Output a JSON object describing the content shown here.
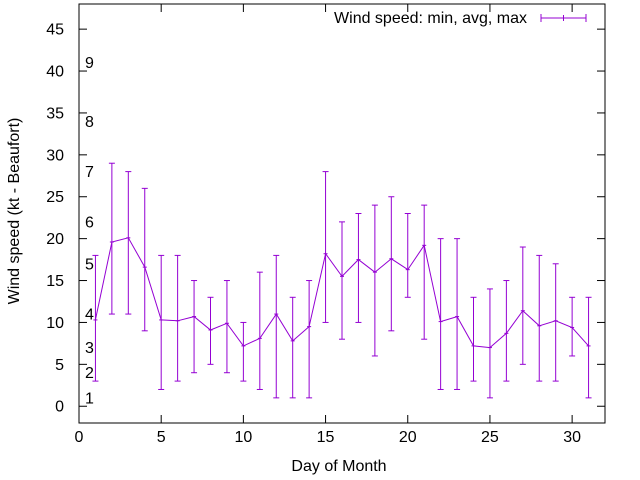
{
  "chart_data": {
    "type": "line",
    "title": "",
    "xlabel": "Day of Month",
    "ylabel": "Wind speed (kt - Beaufort)",
    "xlim": [
      0,
      32
    ],
    "ylim": [
      -2,
      48
    ],
    "xticks": [
      0,
      5,
      10,
      15,
      20,
      25,
      30
    ],
    "yticks": [
      0,
      5,
      10,
      15,
      20,
      25,
      30,
      35,
      40,
      45
    ],
    "legend": {
      "label": "Wind speed: min, avg, max",
      "position": "top-right"
    },
    "series_color": "#9400d3",
    "beaufort_labels": [
      {
        "label": "1",
        "y": 1
      },
      {
        "label": "2",
        "y": 4
      },
      {
        "label": "3",
        "y": 7
      },
      {
        "label": "4",
        "y": 11
      },
      {
        "label": "5",
        "y": 17
      },
      {
        "label": "6",
        "y": 22
      },
      {
        "label": "7",
        "y": 28
      },
      {
        "label": "8",
        "y": 34
      },
      {
        "label": "9",
        "y": 41
      }
    ],
    "series": [
      {
        "name": "Wind speed: min, avg, max",
        "points": [
          {
            "day": 1,
            "min": 3,
            "avg": 10.3,
            "max": 18
          },
          {
            "day": 2,
            "min": 11,
            "avg": 19.6,
            "max": 29
          },
          {
            "day": 3,
            "min": 11,
            "avg": 20.1,
            "max": 28
          },
          {
            "day": 4,
            "min": 9,
            "avg": 16.6,
            "max": 26
          },
          {
            "day": 5,
            "min": 2,
            "avg": 10.3,
            "max": 18
          },
          {
            "day": 6,
            "min": 3,
            "avg": 10.2,
            "max": 18
          },
          {
            "day": 7,
            "min": 4,
            "avg": 10.7,
            "max": 15
          },
          {
            "day": 8,
            "min": 5,
            "avg": 9.1,
            "max": 13
          },
          {
            "day": 9,
            "min": 4,
            "avg": 9.9,
            "max": 15
          },
          {
            "day": 10,
            "min": 3,
            "avg": 7.2,
            "max": 10
          },
          {
            "day": 11,
            "min": 2,
            "avg": 8.1,
            "max": 16
          },
          {
            "day": 12,
            "min": 1,
            "avg": 11.0,
            "max": 18
          },
          {
            "day": 13,
            "min": 1,
            "avg": 7.8,
            "max": 13
          },
          {
            "day": 14,
            "min": 1,
            "avg": 9.5,
            "max": 15
          },
          {
            "day": 15,
            "min": 10,
            "avg": 18.2,
            "max": 28
          },
          {
            "day": 16,
            "min": 8,
            "avg": 15.5,
            "max": 22
          },
          {
            "day": 17,
            "min": 10,
            "avg": 17.5,
            "max": 23
          },
          {
            "day": 18,
            "min": 6,
            "avg": 16.0,
            "max": 24
          },
          {
            "day": 19,
            "min": 9,
            "avg": 17.6,
            "max": 25
          },
          {
            "day": 20,
            "min": 13,
            "avg": 16.3,
            "max": 23
          },
          {
            "day": 21,
            "min": 8,
            "avg": 19.2,
            "max": 24
          },
          {
            "day": 22,
            "min": 2,
            "avg": 10.1,
            "max": 20
          },
          {
            "day": 23,
            "min": 2,
            "avg": 10.7,
            "max": 20
          },
          {
            "day": 24,
            "min": 3,
            "avg": 7.2,
            "max": 13
          },
          {
            "day": 25,
            "min": 1,
            "avg": 7.0,
            "max": 14
          },
          {
            "day": 26,
            "min": 3,
            "avg": 8.7,
            "max": 15
          },
          {
            "day": 27,
            "min": 5,
            "avg": 11.4,
            "max": 19
          },
          {
            "day": 28,
            "min": 3,
            "avg": 9.6,
            "max": 18
          },
          {
            "day": 29,
            "min": 3,
            "avg": 10.2,
            "max": 17
          },
          {
            "day": 30,
            "min": 6,
            "avg": 9.4,
            "max": 13
          },
          {
            "day": 31,
            "min": 1,
            "avg": 7.2,
            "max": 13
          }
        ]
      }
    ]
  }
}
